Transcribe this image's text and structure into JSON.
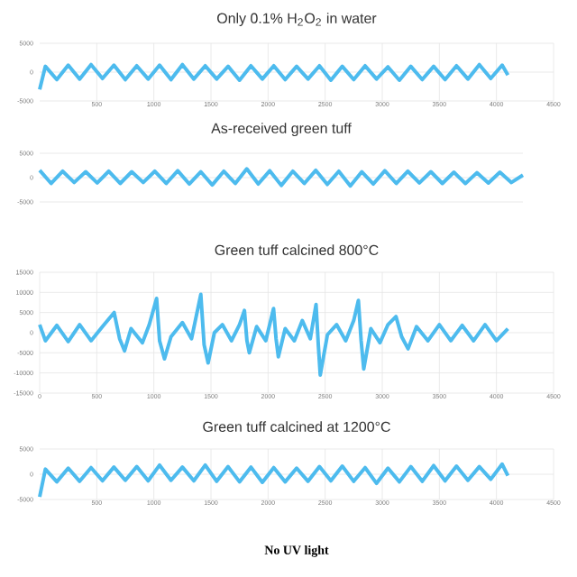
{
  "chart_data": [
    {
      "type": "line",
      "title": "Only 0.1% H$_{2}$O$_{2}$ in water",
      "color": "#4dbbee",
      "xlim": [
        0,
        4500
      ],
      "ylim": [
        -5000,
        5000
      ],
      "xticks": [
        500,
        1000,
        1500,
        2000,
        2500,
        3000,
        3500,
        4000,
        4500
      ],
      "yticks": [
        -5000,
        0,
        5000
      ],
      "grid": true,
      "x": [
        0,
        50,
        150,
        250,
        350,
        450,
        550,
        650,
        750,
        850,
        950,
        1050,
        1150,
        1250,
        1350,
        1450,
        1550,
        1650,
        1750,
        1850,
        1950,
        2050,
        2150,
        2250,
        2350,
        2450,
        2550,
        2650,
        2750,
        2850,
        2950,
        3050,
        3150,
        3250,
        3350,
        3450,
        3550,
        3650,
        3750,
        3850,
        3950,
        4050,
        4100
      ],
      "values": [
        -3000,
        1000,
        -1300,
        1200,
        -1200,
        1300,
        -1100,
        1200,
        -1300,
        1100,
        -1200,
        1200,
        -1300,
        1300,
        -1200,
        1100,
        -1200,
        1000,
        -1400,
        1100,
        -1200,
        1100,
        -1300,
        1000,
        -1200,
        1100,
        -1400,
        1000,
        -1300,
        1100,
        -1200,
        900,
        -1400,
        1000,
        -1300,
        1000,
        -1300,
        1100,
        -1200,
        1300,
        -1100,
        1200,
        -500
      ]
    },
    {
      "type": "line",
      "title": "As-received green tuff",
      "color": "#4dbbee",
      "ylim": [
        -5000,
        5000
      ],
      "yticks": [
        -5000,
        0,
        5000
      ],
      "grid": "y",
      "categories": [
        null,
        null,
        null,
        null,
        null,
        null,
        null,
        null,
        null,
        null,
        null,
        null,
        null,
        null,
        null,
        null,
        null,
        null,
        null,
        null,
        null,
        null,
        null,
        null,
        null,
        null,
        null,
        null,
        null,
        null,
        null,
        null,
        null,
        null,
        null,
        null,
        null,
        null,
        null,
        null,
        null,
        null,
        null
      ],
      "values": [
        1500,
        -1200,
        1300,
        -1000,
        1200,
        -1100,
        1300,
        -1200,
        1200,
        -1000,
        1300,
        -1200,
        1400,
        -1300,
        1200,
        -1500,
        1300,
        -1200,
        1800,
        -1300,
        1400,
        -1600,
        1300,
        -1200,
        1500,
        -1400,
        1300,
        -1700,
        1200,
        -1300,
        1400,
        -1200,
        1300,
        -1100,
        1200,
        -1200,
        1100,
        -1200,
        1000,
        -1100,
        1100,
        -1000,
        500
      ]
    },
    {
      "type": "line",
      "title": "Green tuff calcined 800°C",
      "color": "#4dbbee",
      "xlim": [
        0,
        4500
      ],
      "ylim": [
        -15000,
        15000
      ],
      "xticks": [
        0,
        500,
        1000,
        1500,
        2000,
        2500,
        3000,
        3500,
        4000,
        4500
      ],
      "yticks": [
        -15000,
        -10000,
        -5000,
        0,
        5000,
        10000,
        15000
      ],
      "grid": true,
      "x": [
        0,
        50,
        150,
        250,
        350,
        450,
        550,
        652,
        700,
        743,
        800,
        900,
        960,
        1024,
        1050,
        1093,
        1150,
        1250,
        1330,
        1411,
        1440,
        1475,
        1530,
        1600,
        1680,
        1750,
        1793,
        1815,
        1836,
        1900,
        1980,
        2048,
        2070,
        2090,
        2150,
        2230,
        2300,
        2370,
        2420,
        2440,
        2457,
        2520,
        2600,
        2680,
        2750,
        2791,
        2815,
        2838,
        2900,
        2980,
        3050,
        3120,
        3170,
        3226,
        3300,
        3400,
        3500,
        3600,
        3700,
        3800,
        3900,
        4000,
        4100
      ],
      "values": [
        2000,
        -2000,
        1800,
        -2200,
        2000,
        -2000,
        1500,
        5000,
        -1500,
        -4500,
        1000,
        -2500,
        2000,
        8500,
        -2000,
        -6500,
        -1000,
        2500,
        -1500,
        9500,
        -3000,
        -7500,
        0,
        2000,
        -2000,
        2000,
        5500,
        -2000,
        -5000,
        1500,
        -2000,
        6000,
        -1500,
        -6000,
        1000,
        -2000,
        3000,
        -1500,
        7000,
        -3000,
        -10500,
        -500,
        2000,
        -2000,
        3000,
        8000,
        -2000,
        -9000,
        1000,
        -2500,
        2000,
        4000,
        -1000,
        -4000,
        1500,
        -2000,
        2000,
        -2000,
        1800,
        -2000,
        2000,
        -2000,
        1000
      ]
    },
    {
      "type": "line",
      "title": "Green tuff calcined at 1200°C",
      "color": "#4dbbee",
      "xlim": [
        0,
        4500
      ],
      "ylim": [
        -5000,
        5000
      ],
      "xticks": [
        500,
        1000,
        1500,
        2000,
        2500,
        3000,
        3500,
        4000,
        4500
      ],
      "yticks": [
        -5000,
        0,
        5000
      ],
      "grid": true,
      "annotations": [
        "**No UV light**"
      ],
      "x": [
        0,
        50,
        150,
        250,
        350,
        450,
        550,
        650,
        750,
        850,
        950,
        1050,
        1150,
        1250,
        1350,
        1450,
        1550,
        1650,
        1750,
        1850,
        1950,
        2050,
        2150,
        2250,
        2350,
        2450,
        2550,
        2650,
        2750,
        2850,
        2950,
        3050,
        3150,
        3250,
        3350,
        3450,
        3550,
        3650,
        3750,
        3850,
        3950,
        4050,
        4100
      ],
      "values": [
        -4500,
        1000,
        -1500,
        1200,
        -1400,
        1300,
        -1300,
        1400,
        -1200,
        1500,
        -1300,
        1800,
        -1200,
        1400,
        -1300,
        1800,
        -1400,
        1500,
        -1500,
        1400,
        -1600,
        1300,
        -1500,
        1200,
        -1400,
        1500,
        -1300,
        1600,
        -1400,
        1300,
        -1800,
        1200,
        -1500,
        1500,
        -1400,
        1700,
        -1300,
        1600,
        -1200,
        1500,
        -1000,
        2000,
        -300
      ]
    }
  ]
}
